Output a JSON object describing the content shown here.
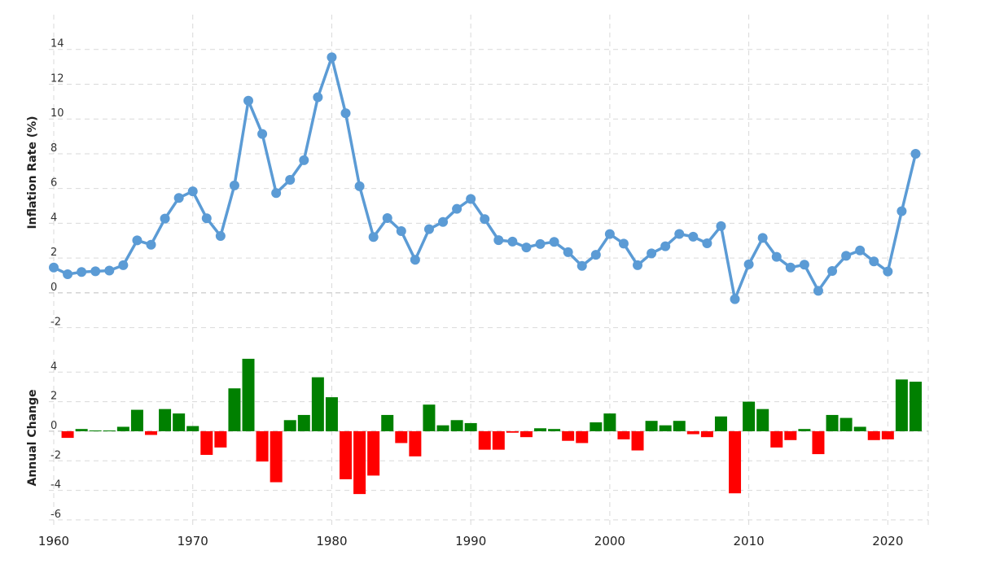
{
  "chart_data": [
    {
      "type": "line",
      "ylabel": "Inflation Rate (%)",
      "color": "#5b9bd5",
      "ylim": [
        -3,
        16
      ],
      "yticks": [
        -2,
        0,
        2,
        4,
        6,
        8,
        10,
        12,
        14
      ],
      "grid": true,
      "x": [
        1960,
        1961,
        1962,
        1963,
        1964,
        1965,
        1966,
        1967,
        1968,
        1969,
        1970,
        1971,
        1972,
        1973,
        1974,
        1975,
        1976,
        1977,
        1978,
        1979,
        1980,
        1981,
        1982,
        1983,
        1984,
        1985,
        1986,
        1987,
        1988,
        1989,
        1990,
        1991,
        1992,
        1993,
        1994,
        1995,
        1996,
        1997,
        1998,
        1999,
        2000,
        2001,
        2002,
        2003,
        2004,
        2005,
        2006,
        2007,
        2008,
        2009,
        2010,
        2011,
        2012,
        2013,
        2014,
        2015,
        2016,
        2017,
        2018,
        2019,
        2020,
        2021,
        2022
      ],
      "values": [
        1.46,
        1.07,
        1.2,
        1.24,
        1.28,
        1.59,
        3.02,
        2.77,
        4.27,
        5.46,
        5.84,
        4.29,
        3.27,
        6.18,
        11.05,
        9.14,
        5.74,
        6.5,
        7.63,
        11.25,
        13.55,
        10.33,
        6.13,
        3.21,
        4.3,
        3.55,
        1.9,
        3.66,
        4.08,
        4.83,
        5.4,
        4.24,
        3.03,
        2.95,
        2.61,
        2.81,
        2.93,
        2.34,
        1.55,
        2.19,
        3.38,
        2.83,
        1.59,
        2.27,
        2.68,
        3.39,
        3.23,
        2.85,
        3.84,
        -0.36,
        1.64,
        3.16,
        2.07,
        1.46,
        1.62,
        0.12,
        1.26,
        2.13,
        2.44,
        1.81,
        1.23,
        4.7,
        8.0
      ]
    },
    {
      "type": "bar",
      "ylabel": "Annual Change",
      "colors": {
        "positive": "#008000",
        "negative": "#ff0000"
      },
      "ylim": [
        -6.5,
        5.5
      ],
      "yticks": [
        -6,
        -4,
        -2,
        0,
        2,
        4
      ],
      "grid": true,
      "x": [
        1961,
        1962,
        1963,
        1964,
        1965,
        1966,
        1967,
        1968,
        1969,
        1970,
        1971,
        1972,
        1973,
        1974,
        1975,
        1976,
        1977,
        1978,
        1979,
        1980,
        1981,
        1982,
        1983,
        1984,
        1985,
        1986,
        1987,
        1988,
        1989,
        1990,
        1991,
        1992,
        1993,
        1994,
        1995,
        1996,
        1997,
        1998,
        1999,
        2000,
        2001,
        2002,
        2003,
        2004,
        2005,
        2006,
        2007,
        2008,
        2009,
        2010,
        2011,
        2012,
        2013,
        2014,
        2015,
        2016,
        2017,
        2018,
        2019,
        2020,
        2021,
        2022
      ],
      "values": [
        -0.45,
        0.15,
        0.05,
        0.05,
        0.3,
        1.45,
        -0.25,
        1.5,
        1.2,
        0.35,
        -1.6,
        -1.1,
        2.9,
        4.9,
        -2.05,
        -3.45,
        0.75,
        1.1,
        3.65,
        2.3,
        -3.25,
        -4.25,
        -3.0,
        1.1,
        -0.8,
        -1.7,
        1.8,
        0.4,
        0.75,
        0.55,
        -1.25,
        -1.25,
        -0.1,
        -0.4,
        0.2,
        0.15,
        -0.65,
        -0.8,
        0.6,
        1.2,
        -0.55,
        -1.3,
        0.7,
        0.4,
        0.7,
        -0.2,
        -0.4,
        1.0,
        -4.2,
        2.0,
        1.5,
        -1.1,
        -0.6,
        0.15,
        -1.55,
        1.1,
        0.9,
        0.3,
        -0.6,
        -0.55,
        3.5,
        3.35
      ]
    }
  ],
  "x_axis": {
    "ticks": [
      1960,
      1970,
      1980,
      1990,
      2000,
      2010,
      2020
    ],
    "xlim": [
      1960,
      2022.5
    ]
  }
}
